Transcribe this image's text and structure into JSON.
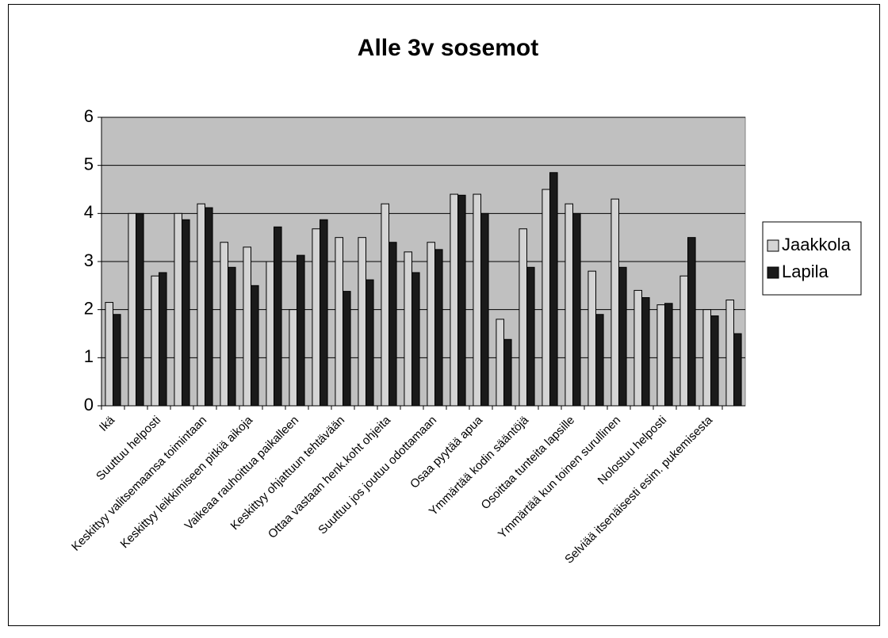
{
  "chart_data": {
    "type": "bar",
    "title": "Alle 3v sosemot",
    "categories": [
      "Ikä",
      null,
      "Suuttuu helposti",
      null,
      "Keskittyy valitsemaansa toimintaan",
      null,
      "Keskittyy leikkimiseen pitkiä aikoja",
      null,
      "Vaikeaa rauhoittua paikalleen",
      null,
      "Keskittyy ohjattuun tehtävään",
      null,
      "Ottaa vastaan henk.koht ohjeita",
      null,
      "Suuttuu jos joutuu odottamaan",
      null,
      "Osaa pyytää apua",
      null,
      "Ymmärtää kodin sääntöjä",
      null,
      "Osoittaa tunteita lapsille",
      null,
      "Ymmärtää kun toinen surullinen",
      null,
      "Nolostuu helposti",
      null,
      "Selviää itsenäisesti esim. pukemisesta",
      null
    ],
    "series": [
      {
        "name": "Jaakkola",
        "color": "#d4d4d4",
        "values": [
          2.15,
          4.0,
          2.7,
          4.0,
          4.2,
          3.4,
          3.3,
          3.0,
          2.0,
          3.68,
          3.5,
          3.5,
          4.2,
          3.2,
          3.4,
          4.4,
          4.4,
          1.8,
          3.68,
          4.5,
          4.2,
          2.8,
          4.3,
          2.4,
          2.1,
          2.7,
          2.0,
          2.2
        ]
      },
      {
        "name": "Lapila",
        "color": "#1a1a1a",
        "values": [
          1.9,
          4.0,
          2.77,
          3.87,
          4.12,
          2.88,
          2.5,
          3.72,
          3.13,
          3.87,
          2.38,
          2.62,
          3.4,
          2.77,
          3.25,
          4.38,
          4.0,
          1.38,
          2.88,
          4.85,
          4.0,
          1.9,
          2.88,
          2.25,
          2.13,
          3.5,
          1.87,
          1.5
        ]
      }
    ],
    "ylim": [
      0,
      6
    ],
    "yticks": [
      0,
      1,
      2,
      3,
      4,
      5,
      6
    ],
    "grid": true,
    "legend": "right",
    "plot_background": "#c0c0c0"
  }
}
